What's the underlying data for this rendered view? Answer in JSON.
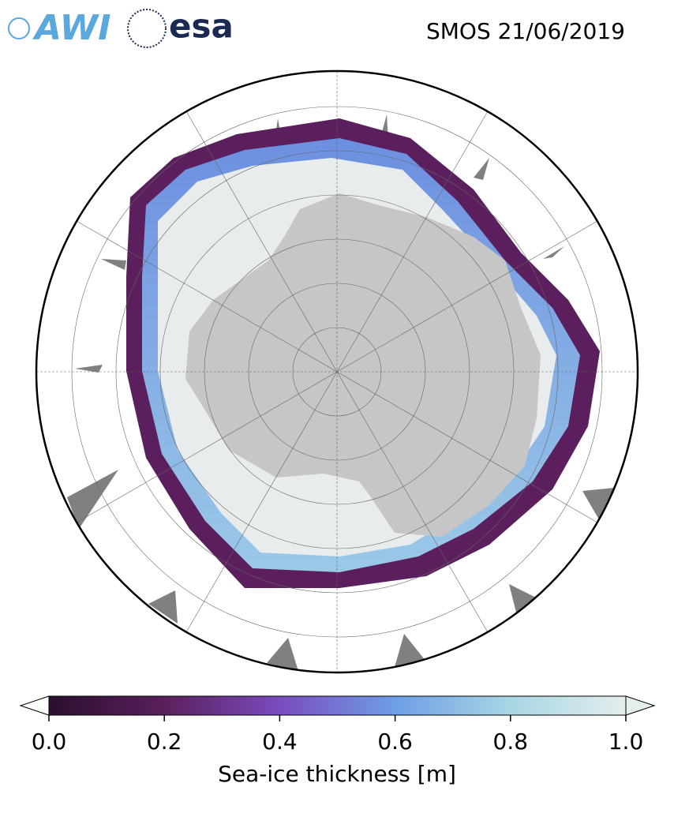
{
  "header": {
    "logos": {
      "awi": "AWI",
      "esa": "esa"
    },
    "title": "SMOS 21/06/2019"
  },
  "colorbar": {
    "label": "Sea-ice thickness [m]",
    "lim": [
      0,
      1
    ],
    "ticks": [
      {
        "value": 0,
        "label": "0.0"
      },
      0.2,
      0.4,
      0.6,
      0.8,
      {
        "value": 1,
        "label": "1.0"
      }
    ],
    "colors": [
      "#2b0f2e",
      "#5a1f5c",
      "#7a4cbd",
      "#6e9ee6",
      "#a8d6e4",
      "#e4eeec"
    ]
  }
}
